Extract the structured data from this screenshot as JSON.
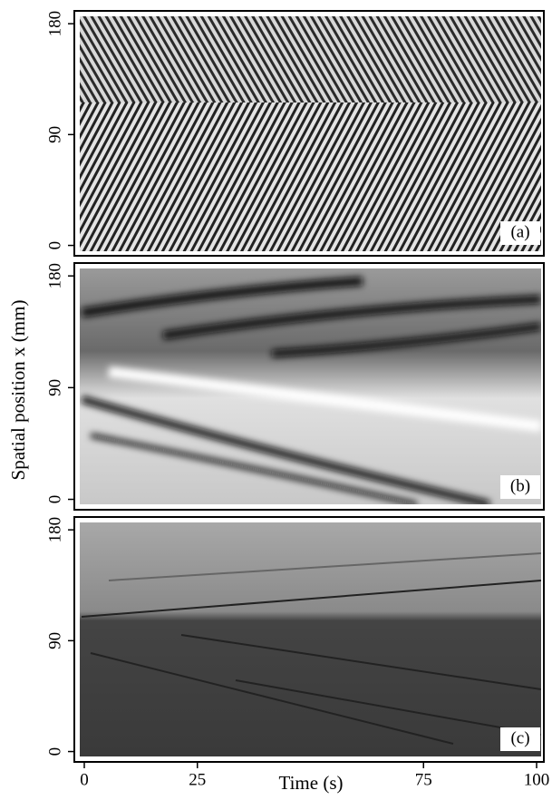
{
  "chart_data": [
    {
      "type": "image",
      "panel_label": "(a)",
      "ylim": [
        -4,
        186
      ],
      "yticks": [
        0,
        90,
        180
      ],
      "xlim": [
        -1,
        101
      ]
    },
    {
      "type": "image",
      "panel_label": "(b)",
      "ylabel": "Spatial position  x (mm)",
      "ylim": [
        -4,
        186
      ],
      "yticks": [
        0,
        90,
        180
      ],
      "xlim": [
        -1,
        101
      ]
    },
    {
      "type": "image",
      "panel_label": "(c)",
      "xlabel": "Time (s)",
      "ylim": [
        -4,
        186
      ],
      "yticks": [
        0,
        90,
        180
      ],
      "xlim": [
        -1,
        101
      ],
      "xticks": [
        0,
        25,
        75,
        100
      ]
    }
  ]
}
